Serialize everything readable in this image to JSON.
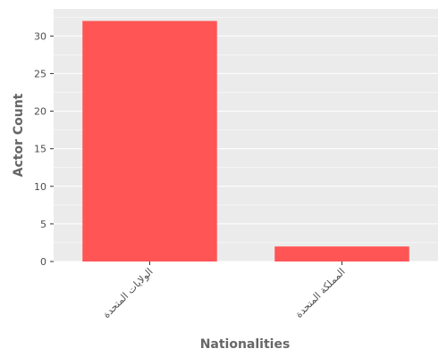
{
  "chart_data": {
    "type": "bar",
    "categories": [
      "الولايات المتحدة",
      "المملكة المتحدة"
    ],
    "values": [
      32,
      2
    ],
    "title": "",
    "xlabel": "Nationalities",
    "ylabel": "Actor Count",
    "ylim": [
      0,
      33.6
    ],
    "yticks": [
      0,
      5,
      10,
      15,
      20,
      25,
      30
    ],
    "grid": true,
    "bar_color": "#FF5555",
    "background_color": "#EBEBEB",
    "grid_color": "#FFFFFF",
    "tick_label_color": "#4D4D4D",
    "axis_label_color": "#666666"
  }
}
